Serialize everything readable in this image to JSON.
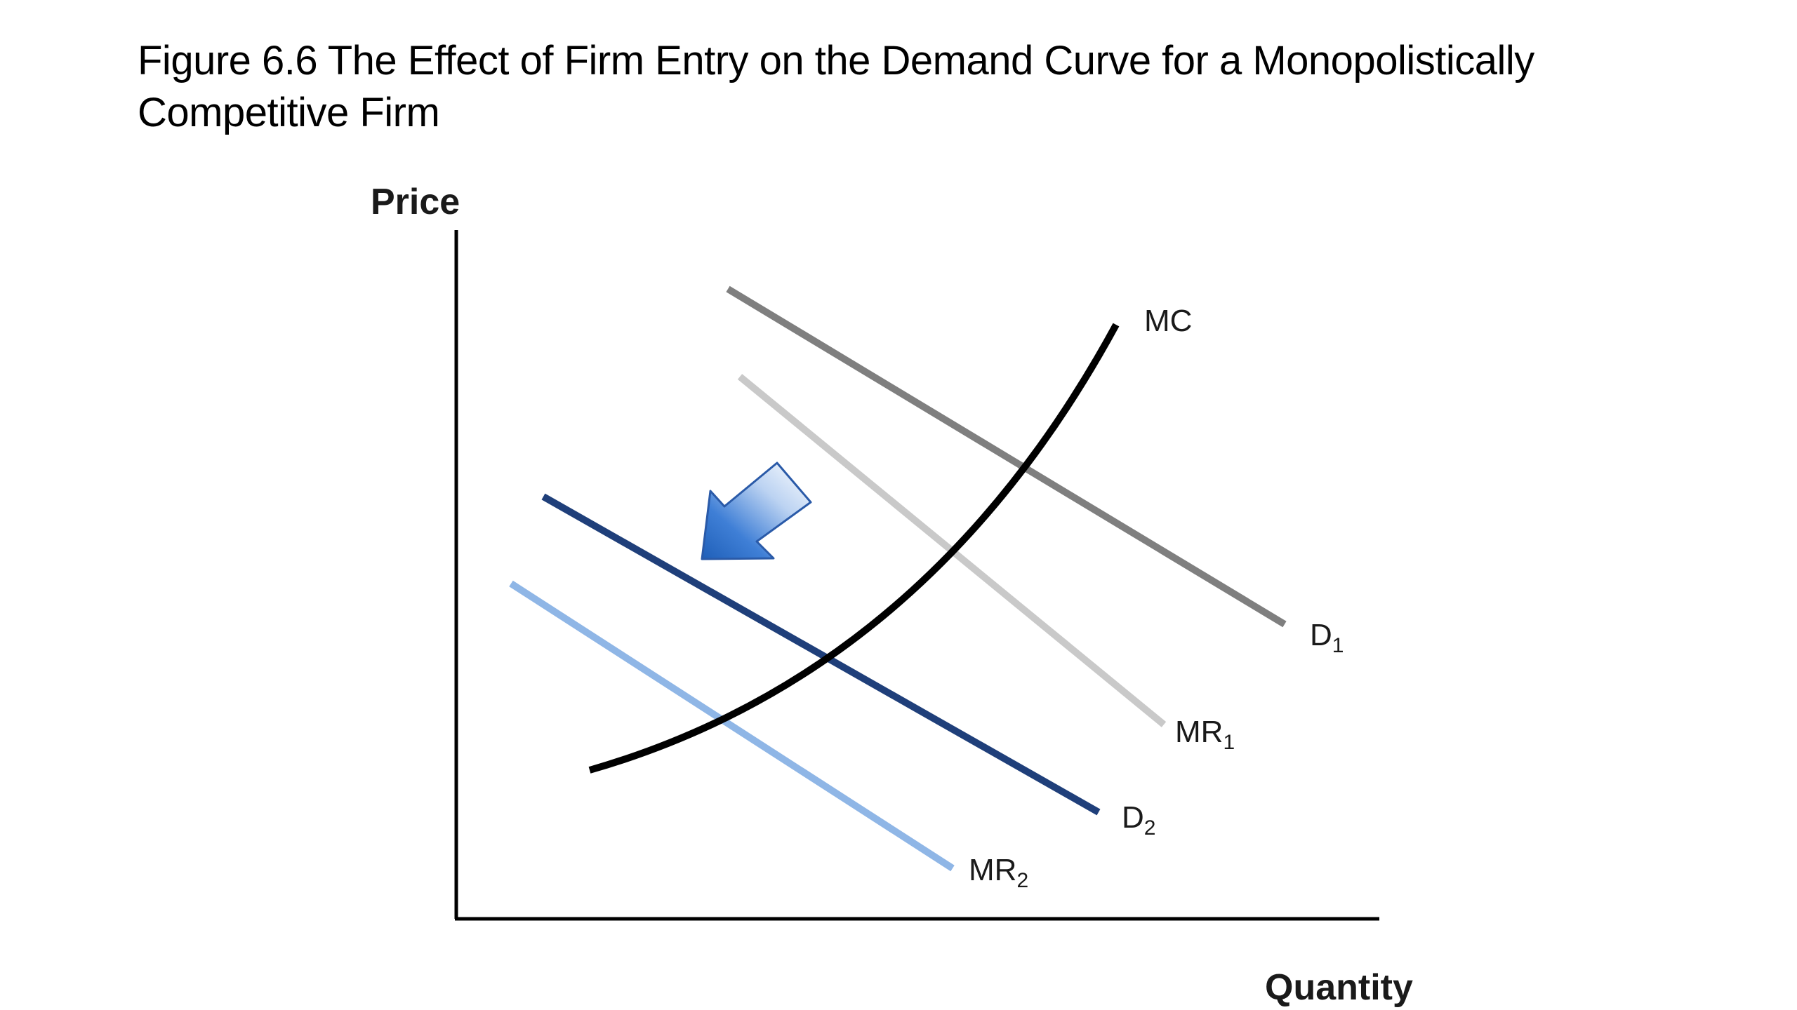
{
  "figure": {
    "title_line1": "Figure 6.6  The Effect of Firm Entry on the Demand Curve for a Monopolistically",
    "title_line2": "Competitive Firm"
  },
  "axes": {
    "y_label": "Price",
    "x_label": "Quantity"
  },
  "curves": {
    "mc": {
      "label": "MC",
      "color": "#000000"
    },
    "d1": {
      "label": "D",
      "subscript": "1",
      "color": "#7f7f7f"
    },
    "mr1": {
      "label": "MR",
      "subscript": "1",
      "color": "#c9c9c9"
    },
    "d2": {
      "label": "D",
      "subscript": "2",
      "color": "#1f3f7a"
    },
    "mr2": {
      "label": "MR",
      "subscript": "2",
      "color": "#8fb6e6"
    }
  },
  "shift_arrow": {
    "icon": "arrow-down-left-icon",
    "color": "#2e6fc8"
  }
}
